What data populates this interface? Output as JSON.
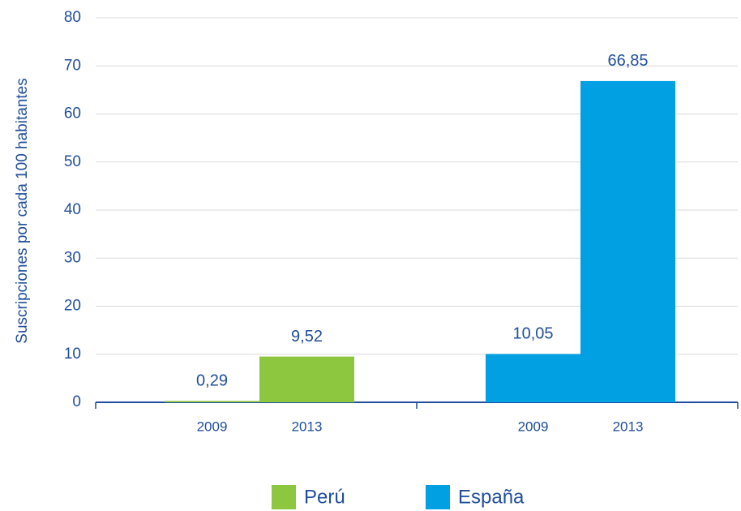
{
  "chart_data": {
    "type": "bar",
    "y_label": "Suscripciones por cada 100 habitantes",
    "categories": [
      "2009",
      "2013"
    ],
    "series": [
      {
        "name": "Perú",
        "color": "#8dc63f",
        "values": [
          0.29,
          9.52
        ],
        "value_labels": [
          "0,29",
          "9,52"
        ]
      },
      {
        "name": "España",
        "color": "#00a0e3",
        "values": [
          10.05,
          66.85
        ],
        "value_labels": [
          "10,05",
          "66,85"
        ]
      }
    ],
    "ylim": [
      0,
      80
    ],
    "yticks": [
      0,
      10,
      20,
      30,
      40,
      50,
      60,
      70,
      80
    ],
    "grid": true,
    "legend": "bottom"
  }
}
